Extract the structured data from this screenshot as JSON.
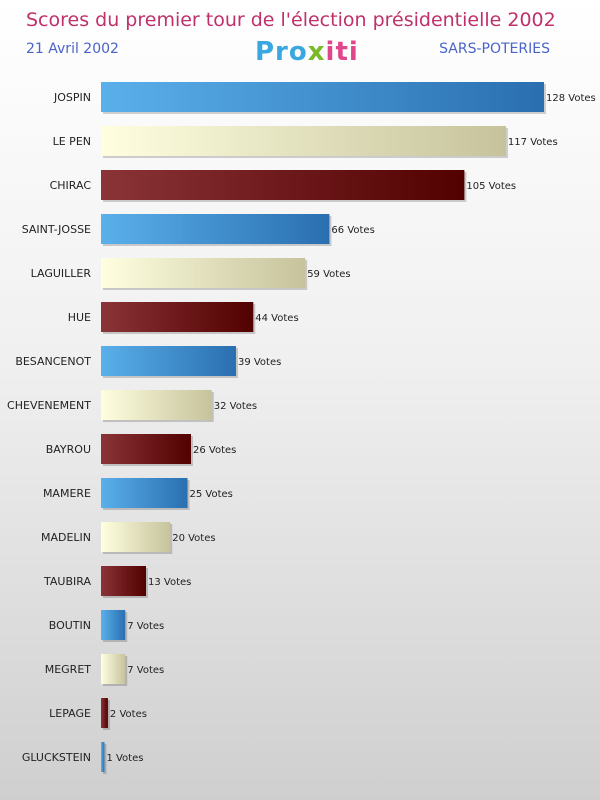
{
  "header": {
    "title": "Scores du premier tour de l'élection présidentielle 2002",
    "date": "21 Avril 2002",
    "commune": "SARS-POTERIES",
    "logo": {
      "p1": "Pro",
      "p2": "x",
      "p3": "iti"
    }
  },
  "chart_data": {
    "type": "bar",
    "orientation": "horizontal",
    "categories": [
      "JOSPIN",
      "LE PEN",
      "CHIRAC",
      "SAINT-JOSSE",
      "LAGUILLER",
      "HUE",
      "BESANCENOT",
      "CHEVENEMENT",
      "BAYROU",
      "MAMERE",
      "MADELIN",
      "TAUBIRA",
      "BOUTIN",
      "MEGRET",
      "LEPAGE",
      "GLUCKSTEIN"
    ],
    "values": [
      128,
      117,
      105,
      66,
      59,
      44,
      39,
      32,
      26,
      25,
      20,
      13,
      7,
      7,
      2,
      1
    ],
    "value_labels": [
      "128 Votes",
      "117 Votes",
      "105 Votes",
      "66 Votes",
      "59 Votes",
      "44 Votes",
      "39 Votes",
      "32 Votes",
      "26 Votes",
      "25 Votes",
      "20 Votes",
      "13 Votes",
      "7 Votes",
      "7 Votes",
      "2 Votes",
      "1 Votes"
    ],
    "xlim": [
      0,
      128
    ],
    "grid": false,
    "colors": [
      {
        "light": "#5ab0ea",
        "dark": "#2a6fb0"
      },
      {
        "light": "#ffffe0",
        "dark": "#c6c39c"
      },
      {
        "light": "#8a3438",
        "dark": "#520000"
      }
    ]
  }
}
